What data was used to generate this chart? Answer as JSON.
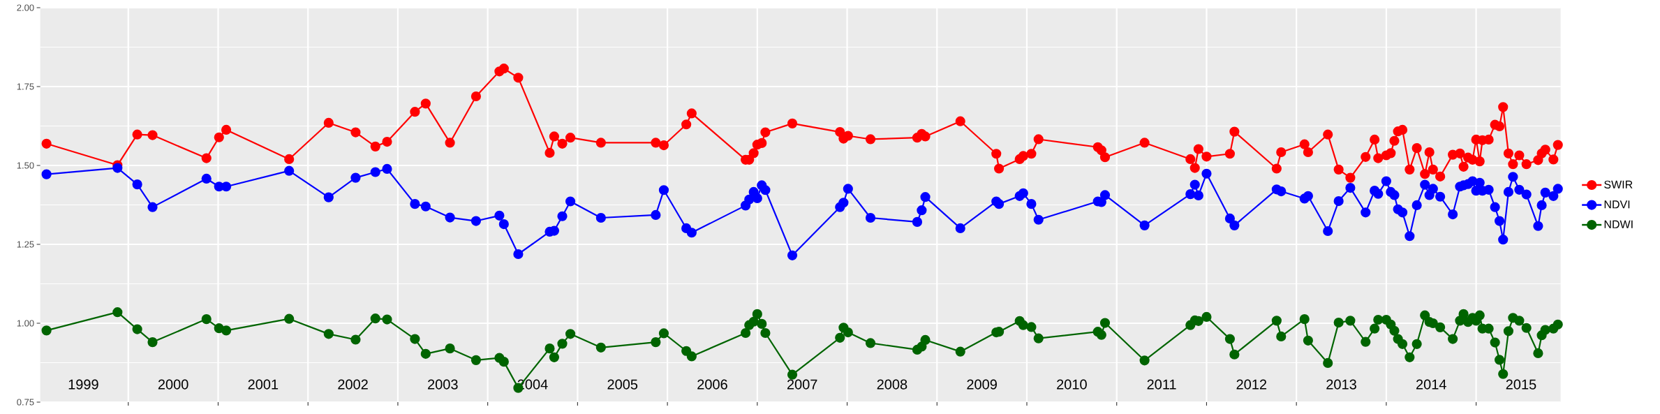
{
  "chart_data": {
    "type": "line",
    "x": [
      1999.09,
      1999.88,
      2000.1,
      2000.27,
      2000.87,
      2001.01,
      2001.09,
      2001.79,
      2002.23,
      2002.53,
      2002.75,
      2002.88,
      2003.19,
      2003.31,
      2003.58,
      2003.87,
      2004.13,
      2004.18,
      2004.34,
      2004.69,
      2004.74,
      2004.83,
      2004.92,
      2005.26,
      2005.87,
      2005.96,
      2006.21,
      2006.27,
      2006.87,
      2006.91,
      2006.96,
      2007.0,
      2007.05,
      2007.09,
      2007.39,
      2007.92,
      2007.96,
      2008.01,
      2008.26,
      2008.78,
      2008.83,
      2008.87,
      2009.26,
      2009.66,
      2009.69,
      2009.92,
      2009.96,
      2010.05,
      2010.13,
      2010.79,
      2010.83,
      2010.87,
      2011.31,
      2011.82,
      2011.87,
      2011.91,
      2012.0,
      2012.26,
      2012.31,
      2012.78,
      2012.83,
      2013.09,
      2013.13,
      2013.35,
      2013.47,
      2013.6,
      2013.77,
      2013.87,
      2013.91,
      2014.0,
      2014.05,
      2014.09,
      2014.13,
      2014.18,
      2014.26,
      2014.34,
      2014.43,
      2014.48,
      2014.52,
      2014.6,
      2014.74,
      2014.82,
      2014.86,
      2014.91,
      2014.96,
      2015.0,
      2015.04,
      2015.07,
      2015.14,
      2015.21,
      2015.26,
      2015.3,
      2015.36,
      2015.41,
      2015.48,
      2015.56,
      2015.69,
      2015.73,
      2015.77,
      2015.86,
      2015.91
    ],
    "series": [
      {
        "name": "SWIR",
        "color": "#ff0000",
        "values": [
          1.569,
          1.501,
          1.598,
          1.596,
          1.523,
          1.589,
          1.613,
          1.52,
          1.635,
          1.605,
          1.56,
          1.575,
          1.67,
          1.696,
          1.572,
          1.719,
          1.798,
          1.807,
          1.778,
          1.54,
          1.592,
          1.569,
          1.588,
          1.572,
          1.572,
          1.564,
          1.63,
          1.665,
          1.518,
          1.518,
          1.539,
          1.566,
          1.571,
          1.605,
          1.633,
          1.606,
          1.585,
          1.594,
          1.583,
          1.588,
          1.6,
          1.592,
          1.64,
          1.537,
          1.49,
          1.52,
          1.53,
          1.537,
          1.583,
          1.558,
          1.548,
          1.526,
          1.572,
          1.52,
          1.492,
          1.552,
          1.528,
          1.537,
          1.607,
          1.49,
          1.542,
          1.567,
          1.542,
          1.598,
          1.487,
          1.461,
          1.527,
          1.582,
          1.523,
          1.532,
          1.539,
          1.578,
          1.608,
          1.613,
          1.487,
          1.555,
          1.473,
          1.542,
          1.487,
          1.465,
          1.534,
          1.538,
          1.496,
          1.525,
          1.518,
          1.582,
          1.513,
          1.58,
          1.582,
          1.629,
          1.624,
          1.685,
          1.538,
          1.504,
          1.532,
          1.504,
          1.517,
          1.538,
          1.55,
          1.519,
          1.565
        ]
      },
      {
        "name": "NDVI",
        "color": "#0000ff",
        "values": [
          1.472,
          1.492,
          1.44,
          1.368,
          1.458,
          1.433,
          1.433,
          1.483,
          1.399,
          1.461,
          1.479,
          1.489,
          1.378,
          1.37,
          1.335,
          1.324,
          1.341,
          1.314,
          1.219,
          1.29,
          1.293,
          1.339,
          1.386,
          1.334,
          1.343,
          1.422,
          1.301,
          1.287,
          1.373,
          1.392,
          1.416,
          1.396,
          1.437,
          1.422,
          1.215,
          1.368,
          1.382,
          1.426,
          1.334,
          1.321,
          1.358,
          1.4,
          1.301,
          1.386,
          1.378,
          1.403,
          1.412,
          1.378,
          1.328,
          1.386,
          1.384,
          1.406,
          1.31,
          1.409,
          1.439,
          1.405,
          1.474,
          1.332,
          1.31,
          1.424,
          1.418,
          1.395,
          1.403,
          1.292,
          1.387,
          1.429,
          1.351,
          1.42,
          1.41,
          1.45,
          1.416,
          1.406,
          1.361,
          1.351,
          1.276,
          1.374,
          1.439,
          1.406,
          1.426,
          1.401,
          1.345,
          1.433,
          1.437,
          1.441,
          1.45,
          1.42,
          1.445,
          1.42,
          1.423,
          1.368,
          1.324,
          1.265,
          1.416,
          1.464,
          1.423,
          1.408,
          1.308,
          1.374,
          1.414,
          1.403,
          1.426
        ]
      },
      {
        "name": "NDWI",
        "color": "#006400",
        "values": [
          0.977,
          1.035,
          0.981,
          0.94,
          1.013,
          0.984,
          0.977,
          1.014,
          0.966,
          0.948,
          1.015,
          1.012,
          0.95,
          0.903,
          0.92,
          0.883,
          0.89,
          0.878,
          0.795,
          0.92,
          0.892,
          0.935,
          0.966,
          0.923,
          0.94,
          0.968,
          0.912,
          0.895,
          0.969,
          0.994,
          1.005,
          1.029,
          0.998,
          0.969,
          0.837,
          0.954,
          0.986,
          0.971,
          0.937,
          0.916,
          0.926,
          0.947,
          0.91,
          0.971,
          0.973,
          1.007,
          0.994,
          0.988,
          0.952,
          0.973,
          0.963,
          1.001,
          0.882,
          0.994,
          1.009,
          1.007,
          1.02,
          0.95,
          0.901,
          1.008,
          0.958,
          1.013,
          0.945,
          0.874,
          1.002,
          1.008,
          0.941,
          0.983,
          1.011,
          1.011,
          0.996,
          0.976,
          0.95,
          0.934,
          0.892,
          0.934,
          1.025,
          1.004,
          1.0,
          0.987,
          0.95,
          1.008,
          1.029,
          1.004,
          1.017,
          1.008,
          1.025,
          0.983,
          0.983,
          0.939,
          0.884,
          0.839,
          0.975,
          1.017,
          1.008,
          0.985,
          0.905,
          0.962,
          0.979,
          0.983,
          0.996
        ]
      }
    ],
    "xlim": [
      1999.02,
      2015.94
    ],
    "ylim": [
      0.75,
      2.0
    ],
    "xticks": [
      {
        "value": 1999.5,
        "label": "1999"
      },
      {
        "value": 2000,
        "label": null
      },
      {
        "value": 2000.5,
        "label": "2000"
      },
      {
        "value": 2001,
        "label": null
      },
      {
        "value": 2001.5,
        "label": "2001"
      },
      {
        "value": 2002,
        "label": null
      },
      {
        "value": 2002.5,
        "label": "2002"
      },
      {
        "value": 2003,
        "label": null
      },
      {
        "value": 2003.5,
        "label": "2003"
      },
      {
        "value": 2004,
        "label": null
      },
      {
        "value": 2004.5,
        "label": "2004"
      },
      {
        "value": 2005,
        "label": null
      },
      {
        "value": 2005.5,
        "label": "2005"
      },
      {
        "value": 2006,
        "label": null
      },
      {
        "value": 2006.5,
        "label": "2006"
      },
      {
        "value": 2007,
        "label": null
      },
      {
        "value": 2007.5,
        "label": "2007"
      },
      {
        "value": 2008,
        "label": null
      },
      {
        "value": 2008.5,
        "label": "2008"
      },
      {
        "value": 2009,
        "label": null
      },
      {
        "value": 2009.5,
        "label": "2009"
      },
      {
        "value": 2010,
        "label": null
      },
      {
        "value": 2010.5,
        "label": "2010"
      },
      {
        "value": 2011,
        "label": null
      },
      {
        "value": 2011.5,
        "label": "2011"
      },
      {
        "value": 2012,
        "label": null
      },
      {
        "value": 2012.5,
        "label": "2012"
      },
      {
        "value": 2013,
        "label": null
      },
      {
        "value": 2013.5,
        "label": "2013"
      },
      {
        "value": 2014,
        "label": null
      },
      {
        "value": 2014.5,
        "label": "2014"
      },
      {
        "value": 2015,
        "label": null
      },
      {
        "value": 2015.5,
        "label": "2015"
      }
    ],
    "yticks": [
      {
        "value": 0.75,
        "label": "0.75"
      },
      {
        "value": 1.0,
        "label": "1.00"
      },
      {
        "value": 1.25,
        "label": "1.25"
      },
      {
        "value": 1.5,
        "label": "1.50"
      },
      {
        "value": 1.75,
        "label": "1.75"
      },
      {
        "value": 2.0,
        "label": "2.00"
      }
    ],
    "grid": true,
    "legend": "right",
    "marker": "circle",
    "line_style": "solid"
  }
}
